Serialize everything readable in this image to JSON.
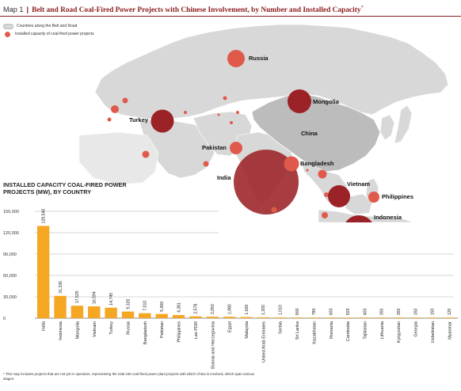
{
  "header": {
    "map_label": "Map 1",
    "separator": "|",
    "title": "Belt and Road Coal-Fired Power Projects with Chinese Involvement, by Number and Installed Capacity",
    "footnote_mark": "*"
  },
  "legend": {
    "land_label": "Countries along the Belt and Road",
    "dot_label": "Installed capacity of coal-fired power projects"
  },
  "colors": {
    "accent": "#8c1d1d",
    "bubble_large": "#9b2226",
    "bubble_small": "#e05a4c",
    "land": "#d8d8d8",
    "china": "#bcbcbc",
    "bar": "#f5a623"
  },
  "map_labels": [
    "Russia",
    "Mongolia",
    "Turkey",
    "China",
    "Pakistan",
    "Bangladesh",
    "India",
    "Vietnam",
    "Philippines",
    "Indonesia"
  ],
  "chart_data": {
    "type": "bar",
    "title": "INSTALLED CAPACITY COAL-FIRED POWER PROJECTS (MW), BY COUNTRY",
    "xlabel": "",
    "ylabel": "",
    "ylim": [
      0,
      150000
    ],
    "yticks": [
      "0",
      "30,000",
      "60,000",
      "90,000",
      "120,000",
      "150,000"
    ],
    "categories": [
      "India",
      "Indonesia",
      "Mongolia",
      "Vietnam",
      "Turkey",
      "Russia",
      "Bangladesh",
      "Pakistan",
      "Philippines",
      "Lao PDR",
      "Bosnia and Herzegovina",
      "Egypt",
      "Malaysia",
      "United Arab Emirates",
      "Serbia",
      "Sri Lanka",
      "Kazakhstan",
      "Romania",
      "Cambodia",
      "Tajikistan",
      "Lithuania",
      "Kyrgyzstan",
      "Georgia",
      "Uzbekistan",
      "Myanmar"
    ],
    "values": [
      129540,
      31336,
      17525,
      16594,
      14745,
      9320,
      7010,
      5900,
      4381,
      2578,
      2050,
      1980,
      1600,
      1200,
      1010,
      900,
      780,
      600,
      505,
      400,
      350,
      300,
      150,
      150,
      120
    ],
    "value_labels": [
      "129,540",
      "31,336",
      "17,525",
      "16,594",
      "14,745",
      "9,320",
      "7,010",
      "5,900",
      "4,381",
      "2,578",
      "2,050",
      "1,980",
      "1,600",
      "1,200",
      "1,010",
      "900",
      "780",
      "600",
      "505",
      "400",
      "350",
      "300",
      "150",
      "150",
      "120"
    ]
  },
  "footnote": "* This map includes projects that are not yet in operation, representing the total 240 coal-fired power plant projects with which China is involved, which span various stages."
}
